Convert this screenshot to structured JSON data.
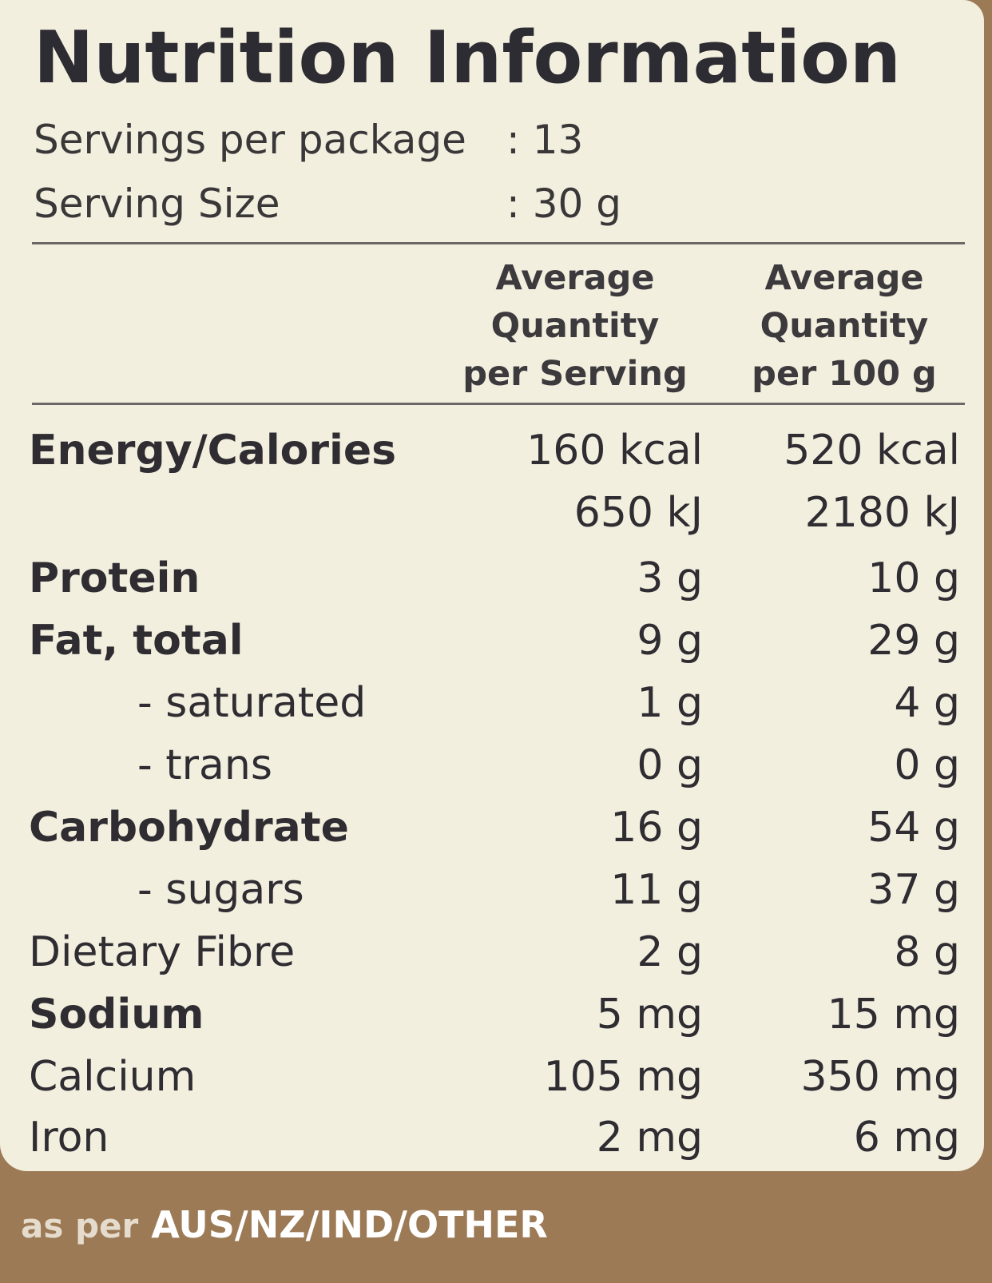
{
  "title": "Nutrition Information",
  "servings": {
    "per_package_label": "Servings per package",
    "per_package_value": ": 13",
    "size_label": "Serving Size",
    "size_value": ": 30 g"
  },
  "columns": {
    "per_serving": [
      "Average",
      "Quantity",
      "per Serving"
    ],
    "per_100g": [
      "Average",
      "Quantity",
      "per 100 g"
    ]
  },
  "rows": [
    {
      "label": "Energy/Calories",
      "per_serving": "160 kcal",
      "per_100g": "520 kcal"
    },
    {
      "label": "",
      "per_serving": "650 kJ",
      "per_100g": "2180 kJ"
    },
    {
      "label": "Protein",
      "per_serving": "3 g",
      "per_100g": "10 g"
    },
    {
      "label": "Fat, total",
      "per_serving": "9 g",
      "per_100g": "29 g"
    },
    {
      "label": "- saturated",
      "per_serving": "1 g",
      "per_100g": "4 g"
    },
    {
      "label": "- trans",
      "per_serving": "0 g",
      "per_100g": "0 g"
    },
    {
      "label": "Carbohydrate",
      "per_serving": "16 g",
      "per_100g": "54 g"
    },
    {
      "label": "- sugars",
      "per_serving": "11 g",
      "per_100g": "37 g"
    },
    {
      "label": "Dietary Fibre",
      "per_serving": "2 g",
      "per_100g": "8 g"
    },
    {
      "label": "Sodium",
      "per_serving": "5 mg",
      "per_100g": "15 mg"
    },
    {
      "label": "Calcium",
      "per_serving": "105 mg",
      "per_100g": "350 mg"
    },
    {
      "label": "Iron",
      "per_serving": "2 mg",
      "per_100g": "6 mg"
    }
  ],
  "footer": {
    "lead": "as per",
    "regions": "AUS/NZ/IND/OTHER"
  }
}
